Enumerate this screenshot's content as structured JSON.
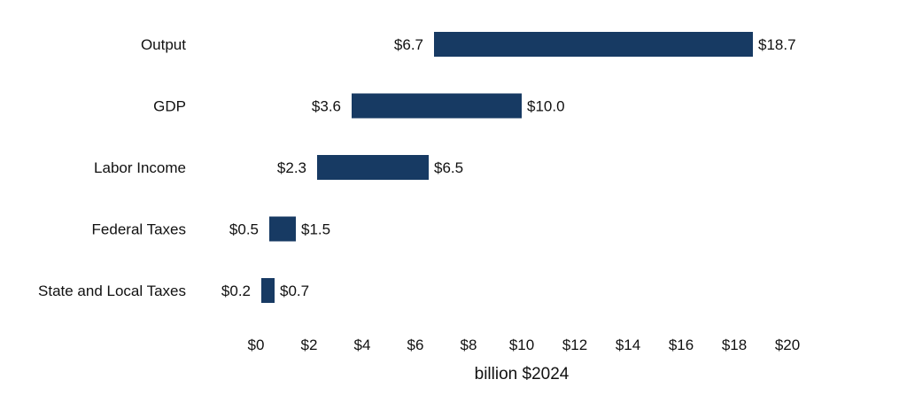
{
  "chart_data": {
    "type": "bar",
    "orientation": "horizontal",
    "style": "floating-range",
    "categories": [
      "Output",
      "GDP",
      "Labor Income",
      "Federal Taxes",
      "State and Local Taxes"
    ],
    "low": [
      6.7,
      3.6,
      2.3,
      0.5,
      0.2
    ],
    "high": [
      18.7,
      10.0,
      6.5,
      1.5,
      0.7
    ],
    "low_labels": [
      "$6.7",
      "$3.6",
      "$2.3",
      "$0.5",
      "$0.2"
    ],
    "high_labels": [
      "$18.7",
      "$10.0",
      "$6.5",
      "$1.5",
      "$0.7"
    ],
    "xlabel": "billion $2024",
    "xlim": [
      0,
      20
    ],
    "xticks": [
      0,
      2,
      4,
      6,
      8,
      10,
      12,
      14,
      16,
      18,
      20
    ],
    "xtick_labels": [
      "$0",
      "$2",
      "$4",
      "$6",
      "$8",
      "$10",
      "$12",
      "$14",
      "$16",
      "$18",
      "$20"
    ],
    "grid": false,
    "legend": "none",
    "bar_color": "#173a63"
  }
}
